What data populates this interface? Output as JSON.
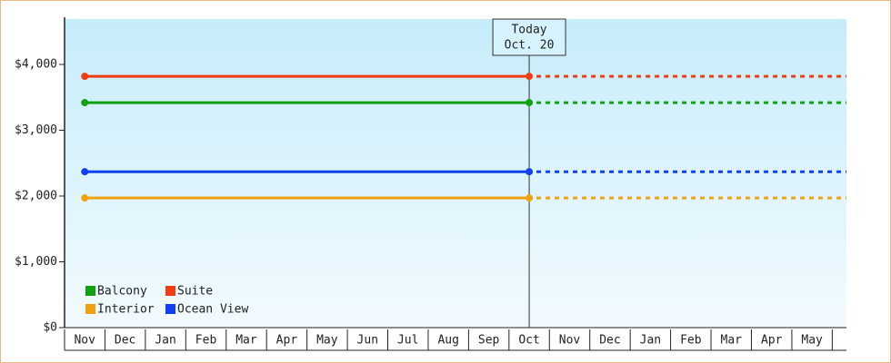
{
  "chart_data": {
    "type": "line",
    "categories": [
      "Nov",
      "Dec",
      "Jan",
      "Feb",
      "Mar",
      "Apr",
      "May",
      "Jun",
      "Jul",
      "Aug",
      "Sep",
      "Oct",
      "Nov",
      "Dec",
      "Jan",
      "Feb",
      "Mar",
      "Apr",
      "May"
    ],
    "series": [
      {
        "name": "Balcony",
        "color": "#10a010",
        "values": [
          3420,
          3420,
          3420,
          3420,
          3420,
          3420,
          3420,
          3420,
          3420,
          3420,
          3420,
          3420,
          null,
          null,
          null,
          null,
          null,
          null,
          null
        ]
      },
      {
        "name": "Suite",
        "color": "#f03c10",
        "values": [
          3820,
          3820,
          3820,
          3820,
          3820,
          3820,
          3820,
          3820,
          3820,
          3820,
          3820,
          3820,
          null,
          null,
          null,
          null,
          null,
          null,
          null
        ]
      },
      {
        "name": "Interior",
        "color": "#f0a010",
        "values": [
          1970,
          1970,
          1970,
          1970,
          1970,
          1970,
          1970,
          1970,
          1970,
          1970,
          1970,
          1970,
          null,
          null,
          null,
          null,
          null,
          null,
          null
        ]
      },
      {
        "name": "Ocean View",
        "color": "#1040f0",
        "values": [
          2370,
          2370,
          2370,
          2370,
          2370,
          2370,
          2370,
          2370,
          2370,
          2370,
          2370,
          2370,
          null,
          null,
          null,
          null,
          null,
          null,
          null
        ]
      }
    ],
    "ylim": [
      0,
      4690
    ],
    "yticks": [
      {
        "value": 0,
        "label": "$0"
      },
      {
        "value": 1000,
        "label": "$1,000"
      },
      {
        "value": 2000,
        "label": "$2,000"
      },
      {
        "value": 3000,
        "label": "$3,000"
      },
      {
        "value": 4000,
        "label": "$4,000"
      }
    ],
    "annotation": {
      "title": "Today",
      "date": "Oct. 20"
    },
    "legend": "bottom-left",
    "grid": false
  }
}
